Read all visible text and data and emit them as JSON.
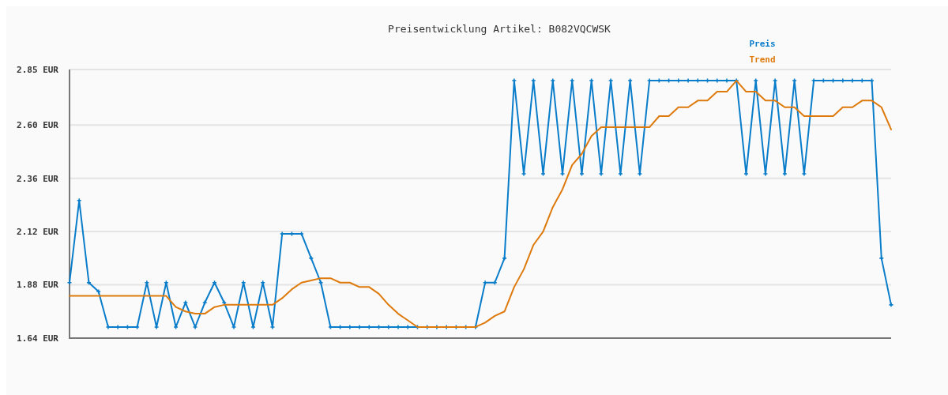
{
  "chart_data": {
    "type": "line",
    "title": "Preisentwicklung Artikel: B082VQCWSK",
    "categories": [
      null,
      null,
      null,
      null,
      null,
      null,
      null,
      null,
      null,
      null,
      null,
      null,
      null,
      null,
      null,
      null,
      null,
      null,
      null,
      null,
      null,
      null,
      null,
      null,
      null,
      null,
      null,
      null,
      null,
      null,
      null,
      null,
      null,
      null,
      null,
      null,
      null,
      null,
      null,
      null,
      null,
      null,
      null,
      null,
      null,
      null,
      null,
      null,
      null,
      null,
      null,
      null,
      null,
      null,
      null,
      null,
      null,
      null,
      null,
      null,
      null,
      null,
      null,
      null,
      null,
      null,
      null,
      null,
      null,
      null,
      null,
      null,
      null,
      null,
      null,
      null,
      null,
      null,
      null,
      null,
      null,
      null,
      null,
      null,
      null,
      null
    ],
    "series": [
      {
        "name": "Preis",
        "color": "#0a7dca",
        "marker": "cross",
        "values": [
          1.89,
          2.26,
          1.89,
          1.85,
          1.69,
          1.69,
          1.69,
          1.69,
          1.89,
          1.69,
          1.89,
          1.69,
          1.8,
          1.69,
          1.8,
          1.89,
          1.8,
          1.69,
          1.89,
          1.69,
          1.89,
          1.69,
          2.11,
          2.11,
          2.11,
          2.0,
          1.89,
          1.69,
          1.69,
          1.69,
          1.69,
          1.69,
          1.69,
          1.69,
          1.69,
          1.69,
          1.69,
          1.69,
          1.69,
          1.69,
          1.69,
          1.69,
          1.69,
          1.89,
          1.89,
          2.0,
          2.8,
          2.38,
          2.8,
          2.38,
          2.8,
          2.38,
          2.8,
          2.38,
          2.8,
          2.38,
          2.8,
          2.38,
          2.8,
          2.38,
          2.8,
          2.8,
          2.8,
          2.8,
          2.8,
          2.8,
          2.8,
          2.8,
          2.8,
          2.8,
          2.38,
          2.8,
          2.38,
          2.8,
          2.38,
          2.8,
          2.38,
          2.8,
          2.8,
          2.8,
          2.8,
          2.8,
          2.8,
          2.8,
          2.0,
          1.79
        ]
      },
      {
        "name": "Trend",
        "color": "#de7a0c",
        "marker": "none",
        "values": [
          1.83,
          1.83,
          1.83,
          1.83,
          1.83,
          1.83,
          1.83,
          1.83,
          1.83,
          1.83,
          1.83,
          1.78,
          1.76,
          1.75,
          1.75,
          1.78,
          1.79,
          1.79,
          1.79,
          1.79,
          1.79,
          1.79,
          1.82,
          1.86,
          1.89,
          1.9,
          1.91,
          1.91,
          1.89,
          1.89,
          1.87,
          1.87,
          1.84,
          1.79,
          1.75,
          1.72,
          1.69,
          1.69,
          1.69,
          1.69,
          1.69,
          1.69,
          1.69,
          1.71,
          1.74,
          1.76,
          1.87,
          1.95,
          2.06,
          2.12,
          2.23,
          2.31,
          2.42,
          2.47,
          2.55,
          2.59,
          2.59,
          2.59,
          2.59,
          2.59,
          2.59,
          2.64,
          2.64,
          2.68,
          2.68,
          2.71,
          2.71,
          2.75,
          2.75,
          2.8,
          2.75,
          2.75,
          2.71,
          2.71,
          2.68,
          2.68,
          2.64,
          2.64,
          2.64,
          2.64,
          2.68,
          2.68,
          2.71,
          2.71,
          2.68,
          2.58
        ]
      }
    ],
    "ylim": [
      1.64,
      2.85
    ],
    "yticks": [
      {
        "value": 1.64,
        "label": "1.64 EUR"
      },
      {
        "value": 1.88,
        "label": "1.88 EUR"
      },
      {
        "value": 2.12,
        "label": "2.12 EUR"
      },
      {
        "value": 2.36,
        "label": "2.36 EUR"
      },
      {
        "value": 2.6,
        "label": "2.60 EUR"
      },
      {
        "value": 2.85,
        "label": "2.85 EUR"
      }
    ],
    "grid": "y",
    "legend": "top right",
    "line_style": "solid"
  }
}
